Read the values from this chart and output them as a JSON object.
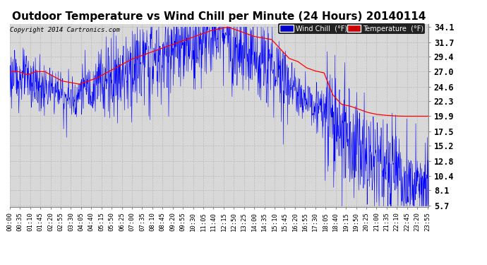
{
  "title": "Outdoor Temperature vs Wind Chill per Minute (24 Hours) 20140114",
  "copyright": "Copyright 2014 Cartronics.com",
  "yticks": [
    5.7,
    8.1,
    10.4,
    12.8,
    15.2,
    17.5,
    19.9,
    22.3,
    24.6,
    27.0,
    29.4,
    31.7,
    34.1
  ],
  "ymin": 5.7,
  "ymax": 34.1,
  "wind_chill_color": "#0000ff",
  "temperature_color": "#ff0000",
  "background_color": "#ffffff",
  "plot_bg_color": "#d8d8d8",
  "legend_wind_chill_bg": "#0000cc",
  "legend_temp_bg": "#cc0000",
  "grid_color": "#bbbbbb",
  "title_fontsize": 11,
  "copyright_fontsize": 6.5,
  "xlabel_fontsize": 6.5,
  "ylabel_fontsize": 8.5,
  "xtick_step": 35
}
